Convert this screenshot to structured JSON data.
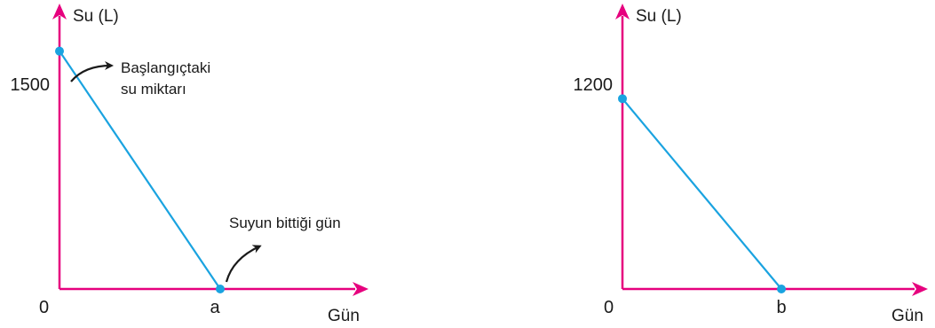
{
  "colors": {
    "axis": "#e6007e",
    "line": "#1aa3e0",
    "point": "#1aa3e0",
    "text": "#1a1a1a",
    "arrow": "#1a1a1a"
  },
  "chart_data": [
    {
      "type": "line",
      "xlabel": "Gün",
      "ylabel": "Su (L)",
      "origin_label": "0",
      "x_tick_labels": [
        "a"
      ],
      "y_tick_labels": [
        "1500"
      ],
      "ylim": [
        0,
        1800
      ],
      "series": [
        {
          "points": [
            {
              "x": "0",
              "y": 1500
            },
            {
              "x": "a",
              "y": 0
            }
          ]
        }
      ],
      "annotations": [
        {
          "lines": [
            "Başlangıçtaki",
            "su miktarı"
          ],
          "target": "start-point"
        },
        {
          "lines": [
            "Suyun bittiği gün"
          ],
          "target": "end-point"
        }
      ]
    },
    {
      "type": "line",
      "xlabel": "Gün",
      "ylabel": "Su (L)",
      "origin_label": "0",
      "x_tick_labels": [
        "b"
      ],
      "y_tick_labels": [
        "1200"
      ],
      "ylim": [
        0,
        1800
      ],
      "series": [
        {
          "points": [
            {
              "x": "0",
              "y": 1200
            },
            {
              "x": "b",
              "y": 0
            }
          ]
        }
      ],
      "annotations": []
    }
  ]
}
